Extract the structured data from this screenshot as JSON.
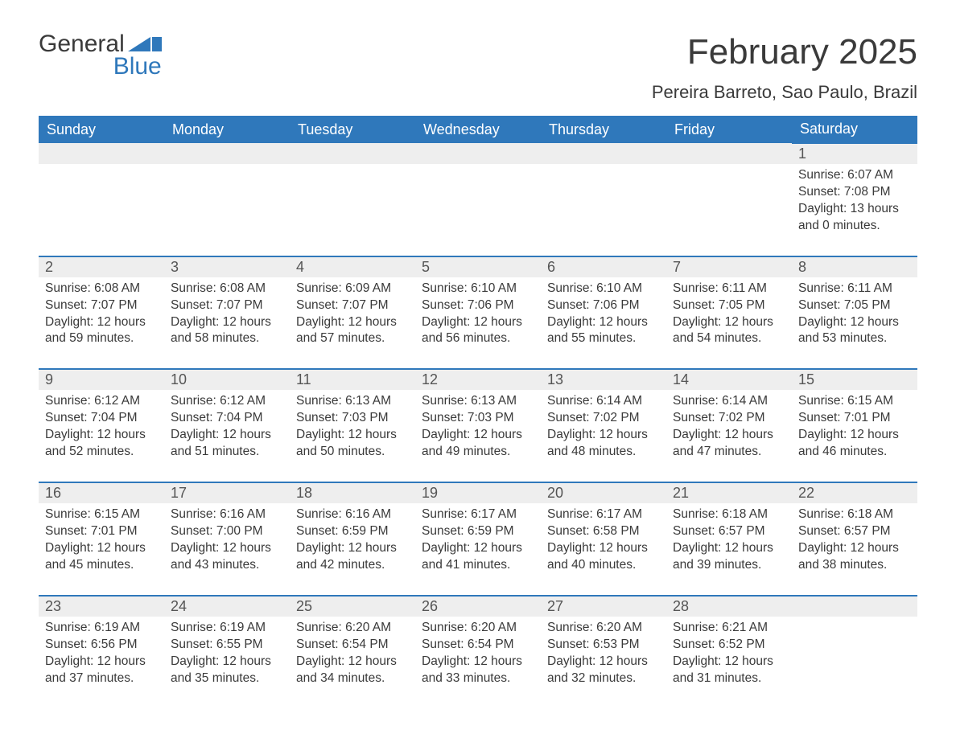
{
  "logo": {
    "line1": "General",
    "line2": "Blue",
    "flag_color": "#2f78bb"
  },
  "title": "February 2025",
  "subtitle": "Pereira Barreto, Sao Paulo, Brazil",
  "style": {
    "header_bg": "#2f78bb",
    "header_fg": "#ffffff",
    "daynum_bg": "#eeeeee",
    "daynum_border_top": "#2f78bb",
    "body_bg": "#ffffff",
    "text_color": "#3a3a3a",
    "title_fontsize": 44,
    "subtitle_fontsize": 22,
    "header_fontsize": 18,
    "cell_fontsize": 15.5,
    "columns": 7
  },
  "weekdays": [
    "Sunday",
    "Monday",
    "Tuesday",
    "Wednesday",
    "Thursday",
    "Friday",
    "Saturday"
  ],
  "weeks": [
    [
      null,
      null,
      null,
      null,
      null,
      null,
      {
        "n": "1",
        "sr": "Sunrise: 6:07 AM",
        "ss": "Sunset: 7:08 PM",
        "dl1": "Daylight: 13 hours",
        "dl2": "and 0 minutes."
      }
    ],
    [
      {
        "n": "2",
        "sr": "Sunrise: 6:08 AM",
        "ss": "Sunset: 7:07 PM",
        "dl1": "Daylight: 12 hours",
        "dl2": "and 59 minutes."
      },
      {
        "n": "3",
        "sr": "Sunrise: 6:08 AM",
        "ss": "Sunset: 7:07 PM",
        "dl1": "Daylight: 12 hours",
        "dl2": "and 58 minutes."
      },
      {
        "n": "4",
        "sr": "Sunrise: 6:09 AM",
        "ss": "Sunset: 7:07 PM",
        "dl1": "Daylight: 12 hours",
        "dl2": "and 57 minutes."
      },
      {
        "n": "5",
        "sr": "Sunrise: 6:10 AM",
        "ss": "Sunset: 7:06 PM",
        "dl1": "Daylight: 12 hours",
        "dl2": "and 56 minutes."
      },
      {
        "n": "6",
        "sr": "Sunrise: 6:10 AM",
        "ss": "Sunset: 7:06 PM",
        "dl1": "Daylight: 12 hours",
        "dl2": "and 55 minutes."
      },
      {
        "n": "7",
        "sr": "Sunrise: 6:11 AM",
        "ss": "Sunset: 7:05 PM",
        "dl1": "Daylight: 12 hours",
        "dl2": "and 54 minutes."
      },
      {
        "n": "8",
        "sr": "Sunrise: 6:11 AM",
        "ss": "Sunset: 7:05 PM",
        "dl1": "Daylight: 12 hours",
        "dl2": "and 53 minutes."
      }
    ],
    [
      {
        "n": "9",
        "sr": "Sunrise: 6:12 AM",
        "ss": "Sunset: 7:04 PM",
        "dl1": "Daylight: 12 hours",
        "dl2": "and 52 minutes."
      },
      {
        "n": "10",
        "sr": "Sunrise: 6:12 AM",
        "ss": "Sunset: 7:04 PM",
        "dl1": "Daylight: 12 hours",
        "dl2": "and 51 minutes."
      },
      {
        "n": "11",
        "sr": "Sunrise: 6:13 AM",
        "ss": "Sunset: 7:03 PM",
        "dl1": "Daylight: 12 hours",
        "dl2": "and 50 minutes."
      },
      {
        "n": "12",
        "sr": "Sunrise: 6:13 AM",
        "ss": "Sunset: 7:03 PM",
        "dl1": "Daylight: 12 hours",
        "dl2": "and 49 minutes."
      },
      {
        "n": "13",
        "sr": "Sunrise: 6:14 AM",
        "ss": "Sunset: 7:02 PM",
        "dl1": "Daylight: 12 hours",
        "dl2": "and 48 minutes."
      },
      {
        "n": "14",
        "sr": "Sunrise: 6:14 AM",
        "ss": "Sunset: 7:02 PM",
        "dl1": "Daylight: 12 hours",
        "dl2": "and 47 minutes."
      },
      {
        "n": "15",
        "sr": "Sunrise: 6:15 AM",
        "ss": "Sunset: 7:01 PM",
        "dl1": "Daylight: 12 hours",
        "dl2": "and 46 minutes."
      }
    ],
    [
      {
        "n": "16",
        "sr": "Sunrise: 6:15 AM",
        "ss": "Sunset: 7:01 PM",
        "dl1": "Daylight: 12 hours",
        "dl2": "and 45 minutes."
      },
      {
        "n": "17",
        "sr": "Sunrise: 6:16 AM",
        "ss": "Sunset: 7:00 PM",
        "dl1": "Daylight: 12 hours",
        "dl2": "and 43 minutes."
      },
      {
        "n": "18",
        "sr": "Sunrise: 6:16 AM",
        "ss": "Sunset: 6:59 PM",
        "dl1": "Daylight: 12 hours",
        "dl2": "and 42 minutes."
      },
      {
        "n": "19",
        "sr": "Sunrise: 6:17 AM",
        "ss": "Sunset: 6:59 PM",
        "dl1": "Daylight: 12 hours",
        "dl2": "and 41 minutes."
      },
      {
        "n": "20",
        "sr": "Sunrise: 6:17 AM",
        "ss": "Sunset: 6:58 PM",
        "dl1": "Daylight: 12 hours",
        "dl2": "and 40 minutes."
      },
      {
        "n": "21",
        "sr": "Sunrise: 6:18 AM",
        "ss": "Sunset: 6:57 PM",
        "dl1": "Daylight: 12 hours",
        "dl2": "and 39 minutes."
      },
      {
        "n": "22",
        "sr": "Sunrise: 6:18 AM",
        "ss": "Sunset: 6:57 PM",
        "dl1": "Daylight: 12 hours",
        "dl2": "and 38 minutes."
      }
    ],
    [
      {
        "n": "23",
        "sr": "Sunrise: 6:19 AM",
        "ss": "Sunset: 6:56 PM",
        "dl1": "Daylight: 12 hours",
        "dl2": "and 37 minutes."
      },
      {
        "n": "24",
        "sr": "Sunrise: 6:19 AM",
        "ss": "Sunset: 6:55 PM",
        "dl1": "Daylight: 12 hours",
        "dl2": "and 35 minutes."
      },
      {
        "n": "25",
        "sr": "Sunrise: 6:20 AM",
        "ss": "Sunset: 6:54 PM",
        "dl1": "Daylight: 12 hours",
        "dl2": "and 34 minutes."
      },
      {
        "n": "26",
        "sr": "Sunrise: 6:20 AM",
        "ss": "Sunset: 6:54 PM",
        "dl1": "Daylight: 12 hours",
        "dl2": "and 33 minutes."
      },
      {
        "n": "27",
        "sr": "Sunrise: 6:20 AM",
        "ss": "Sunset: 6:53 PM",
        "dl1": "Daylight: 12 hours",
        "dl2": "and 32 minutes."
      },
      {
        "n": "28",
        "sr": "Sunrise: 6:21 AM",
        "ss": "Sunset: 6:52 PM",
        "dl1": "Daylight: 12 hours",
        "dl2": "and 31 minutes."
      },
      null
    ]
  ]
}
